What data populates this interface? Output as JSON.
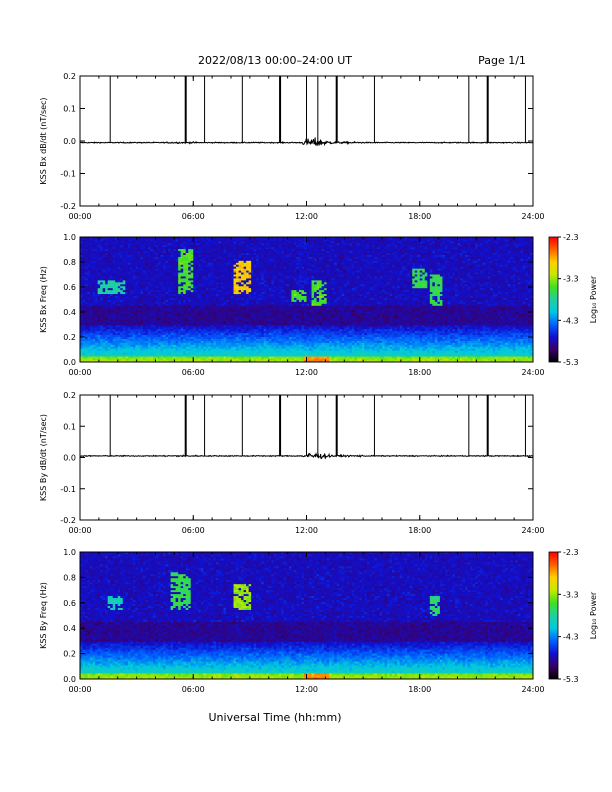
{
  "header": {
    "title": "2022/08/13  00:00–24:00 UT",
    "page": "Page 1/1"
  },
  "footer": {
    "xlabel": "Universal Time (hh:mm)"
  },
  "colors": {
    "trace": "#000000",
    "colorscale": [
      "#000000",
      "#3a0066",
      "#1010d0",
      "#0060ff",
      "#00c8e0",
      "#20d0a0",
      "#40e020",
      "#c8e800",
      "#ffd000",
      "#ff6000",
      "#ff0000"
    ]
  },
  "chart_data": [
    {
      "type": "line",
      "ylabel": "KSS Bx dB/dt (nT/sec)",
      "xlim": [
        0,
        24
      ],
      "ylim": [
        -0.2,
        0.2
      ],
      "xticks": [
        "00:00",
        "06:00",
        "12:00",
        "18:00",
        "24:00"
      ],
      "yticks": [
        "0.2",
        "0.1",
        "0.0",
        "-0.1",
        "-0.2"
      ],
      "baseline": -0.005,
      "calibration_spikes_hours": [
        1.6,
        5.6,
        6.6,
        8.6,
        10.6,
        12.0,
        12.6,
        13.6,
        15.6,
        20.6,
        21.6,
        23.6
      ],
      "disturbance_window_hours": [
        11.8,
        15.0
      ],
      "disturbance_peak_amplitude": 0.02
    },
    {
      "type": "heatmap",
      "ylabel": "KSS Bx Freq (Hz)",
      "xlim": [
        0,
        24
      ],
      "ylim": [
        0.0,
        1.0
      ],
      "xticks": [
        "00:00",
        "06:00",
        "12:00",
        "18:00",
        "24:00"
      ],
      "yticks": [
        "1.0",
        "0.8",
        "0.6",
        "0.4",
        "0.2",
        "0.0"
      ],
      "colorbar": {
        "label": "Log₁₀ Power",
        "range": [
          -5.3,
          -2.3
        ],
        "ticks": [
          "-2.3",
          "-3.3",
          "-4.3",
          "-5.3"
        ]
      },
      "features": [
        {
          "t": [
            8.2,
            9.1
          ],
          "f": [
            0.55,
            0.82
          ],
          "level": -2.9
        },
        {
          "t": [
            5.2,
            6.0
          ],
          "f": [
            0.55,
            0.9
          ],
          "level": -3.5
        },
        {
          "t": [
            11.2,
            12.0
          ],
          "f": [
            0.48,
            0.58
          ],
          "level": -3.5
        },
        {
          "t": [
            12.3,
            13.0
          ],
          "f": [
            0.45,
            0.65
          ],
          "level": -3.5
        },
        {
          "t": [
            17.6,
            18.4
          ],
          "f": [
            0.6,
            0.75
          ],
          "level": -3.6
        },
        {
          "t": [
            18.6,
            19.2
          ],
          "f": [
            0.45,
            0.7
          ],
          "level": -3.6
        },
        {
          "t": [
            1.0,
            2.4
          ],
          "f": [
            0.55,
            0.65
          ],
          "level": -3.8
        }
      ]
    },
    {
      "type": "line",
      "ylabel": "KSS By dB/dt (nT/sec)",
      "xlim": [
        0,
        24
      ],
      "ylim": [
        -0.2,
        0.2
      ],
      "xticks": [
        "00:00",
        "06:00",
        "12:00",
        "18:00",
        "24:00"
      ],
      "yticks": [
        "0.2",
        "0.1",
        "0.0",
        "-0.1",
        "-0.2"
      ],
      "baseline": 0.005,
      "calibration_spikes_hours": [
        1.6,
        5.6,
        6.6,
        8.6,
        10.6,
        12.0,
        12.6,
        13.6,
        15.6,
        20.6,
        21.6,
        23.6
      ],
      "disturbance_window_hours": [
        11.8,
        15.0
      ],
      "disturbance_peak_amplitude": 0.015
    },
    {
      "type": "heatmap",
      "ylabel": "KSS By Freq (Hz)",
      "xlim": [
        0,
        24
      ],
      "ylim": [
        0.0,
        1.0
      ],
      "xticks": [
        "00:00",
        "06:00",
        "12:00",
        "18:00",
        "24:00"
      ],
      "yticks": [
        "1.0",
        "0.8",
        "0.6",
        "0.4",
        "0.2",
        "0.0"
      ],
      "colorbar": {
        "label": "Log₁₀ Power",
        "range": [
          -5.3,
          -2.3
        ],
        "ticks": [
          "-2.3",
          "-3.3",
          "-4.3",
          "-5.3"
        ]
      },
      "features": [
        {
          "t": [
            8.2,
            9.1
          ],
          "f": [
            0.55,
            0.75
          ],
          "level": -3.3
        },
        {
          "t": [
            4.8,
            5.8
          ],
          "f": [
            0.55,
            0.85
          ],
          "level": -3.6
        },
        {
          "t": [
            18.6,
            19.1
          ],
          "f": [
            0.5,
            0.65
          ],
          "level": -3.7
        },
        {
          "t": [
            1.5,
            2.3
          ],
          "f": [
            0.55,
            0.65
          ],
          "level": -3.9
        }
      ]
    }
  ]
}
